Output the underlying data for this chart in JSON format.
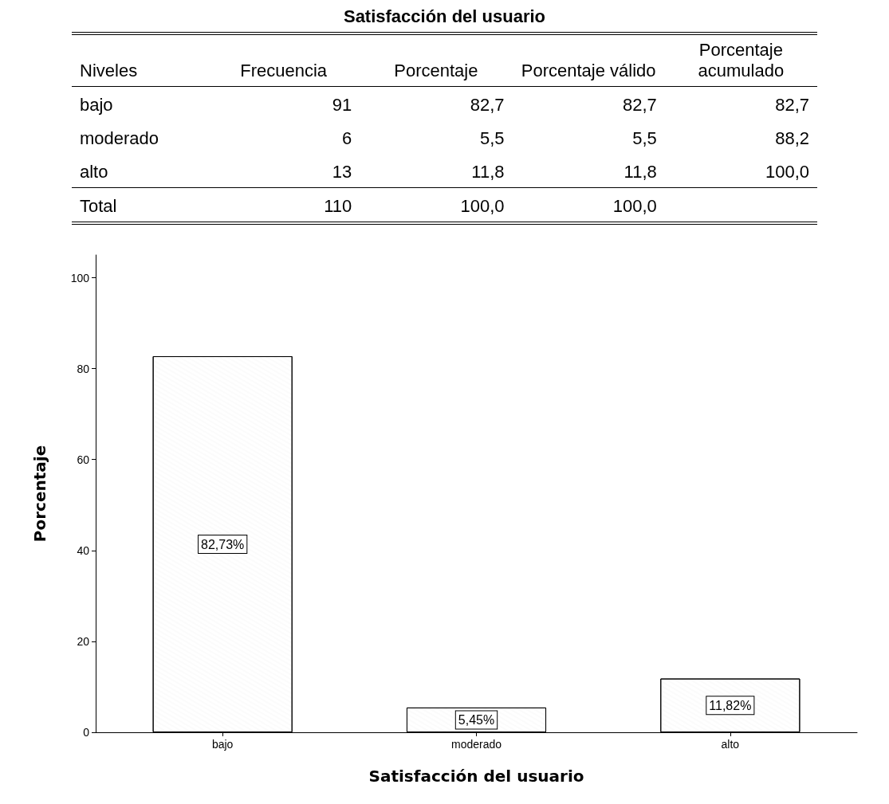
{
  "chart_data": [
    {
      "type": "other",
      "title": "Satisfacción del usuario",
      "annotations": [
        "Niveles",
        "Frecuencia",
        "Porcentaje",
        "Porcentaje válido",
        "Porcentaje acumulado",
        "bajo",
        "91",
        "82,7",
        "82,7",
        "82,7",
        "moderado",
        "6",
        "5,5",
        "5,5",
        "88,2",
        "alto",
        "13",
        "11,8",
        "11,8",
        "100,0",
        "Total",
        "110",
        "100,0",
        "100,0"
      ]
    },
    {
      "type": "bar",
      "categories": [
        "bajo",
        "moderado",
        "alto"
      ],
      "values": [
        82.73,
        5.45,
        11.82
      ],
      "value_labels": [
        "82,73%",
        "5,45%",
        "11,82%"
      ],
      "color": "#ffffff",
      "xlabel": "Satisfacción del usuario",
      "ylabel": "Porcentaje",
      "ylim": [
        0,
        105
      ],
      "yticks": [
        0,
        20,
        40,
        60,
        80,
        100
      ],
      "grid": false
    }
  ]
}
